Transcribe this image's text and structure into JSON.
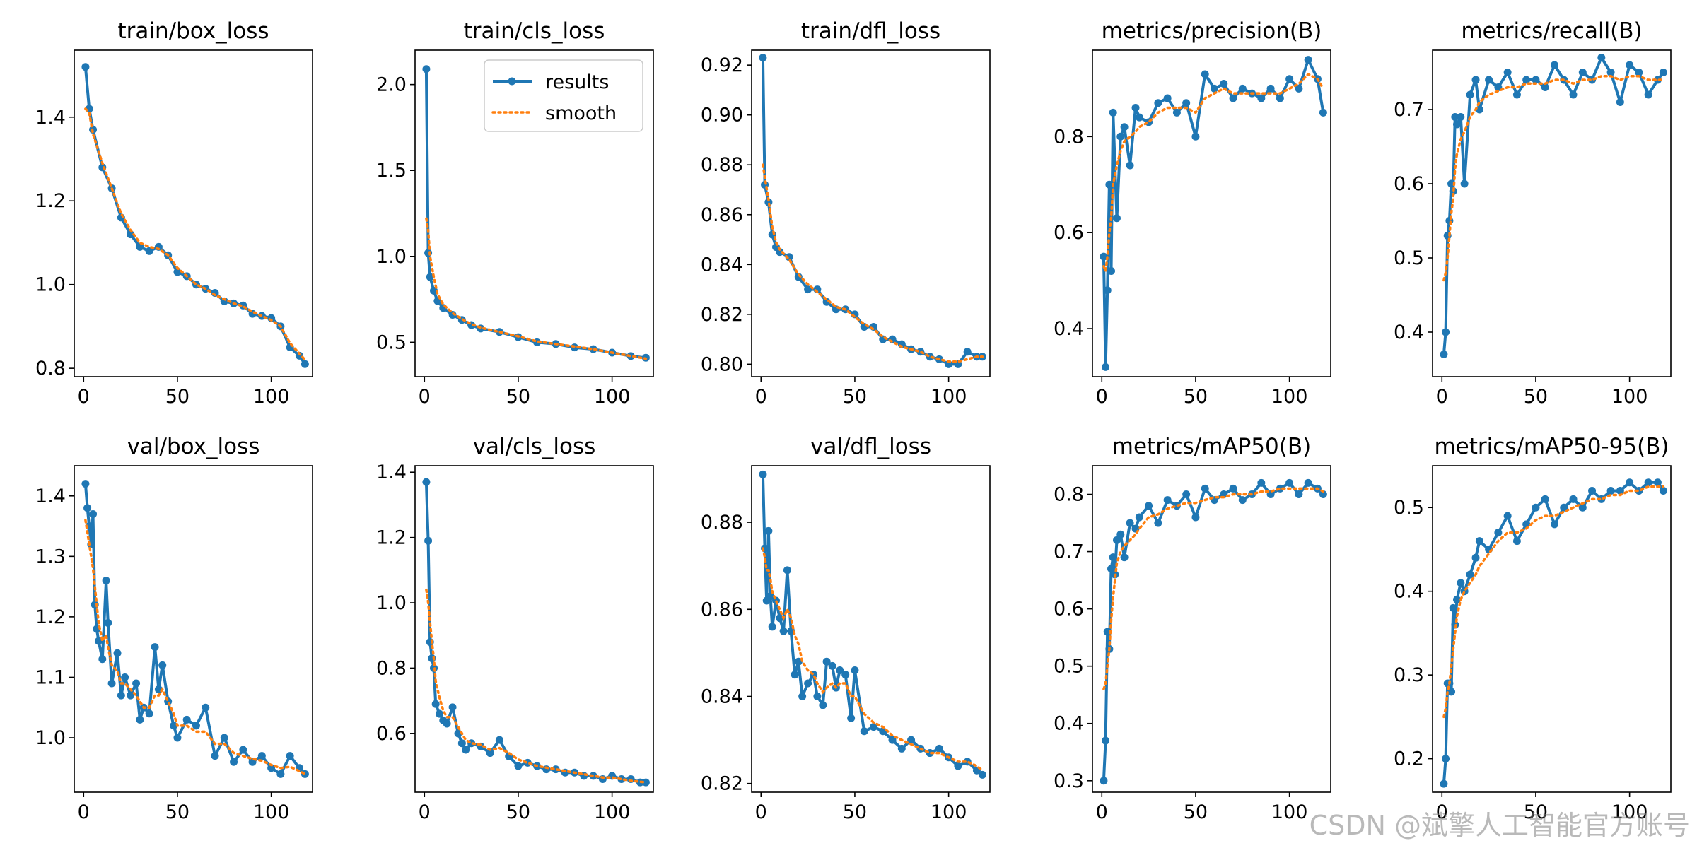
{
  "figure": {
    "rows": 2,
    "cols": 5
  },
  "legend": {
    "results": "results",
    "smooth": "smooth"
  },
  "colors": {
    "results": "#1f77b4",
    "smooth": "#ff7f0e"
  },
  "watermark": "CSDN @斌擎人工智能官方账号",
  "chart_data": [
    {
      "type": "line",
      "title": "train/box_loss",
      "xlim": [
        -5,
        122
      ],
      "ylim": [
        0.78,
        1.56
      ],
      "xticks": [
        0,
        50,
        100
      ],
      "yticks": [
        0.8,
        1.0,
        1.2,
        1.4
      ],
      "legend": false,
      "x": [
        1,
        3,
        5,
        10,
        15,
        20,
        25,
        30,
        35,
        40,
        45,
        50,
        55,
        60,
        65,
        70,
        75,
        80,
        85,
        90,
        95,
        100,
        105,
        110,
        115,
        118
      ],
      "results": [
        1.52,
        1.42,
        1.37,
        1.28,
        1.23,
        1.16,
        1.12,
        1.09,
        1.08,
        1.09,
        1.07,
        1.03,
        1.02,
        1.0,
        0.99,
        0.98,
        0.96,
        0.955,
        0.95,
        0.93,
        0.925,
        0.92,
        0.9,
        0.85,
        0.83,
        0.81
      ],
      "smooth": [
        1.42,
        1.41,
        1.36,
        1.29,
        1.23,
        1.17,
        1.13,
        1.1,
        1.09,
        1.085,
        1.07,
        1.04,
        1.02,
        1.0,
        0.99,
        0.975,
        0.965,
        0.955,
        0.948,
        0.935,
        0.925,
        0.915,
        0.9,
        0.86,
        0.835,
        0.82
      ]
    },
    {
      "type": "line",
      "title": "train/cls_loss",
      "xlim": [
        -5,
        122
      ],
      "ylim": [
        0.3,
        2.2
      ],
      "xticks": [
        0,
        50,
        100
      ],
      "yticks": [
        0.5,
        1.0,
        1.5,
        2.0
      ],
      "legend": true,
      "x": [
        1,
        2,
        3,
        5,
        7,
        10,
        15,
        20,
        25,
        30,
        40,
        50,
        60,
        70,
        80,
        90,
        100,
        110,
        118
      ],
      "results": [
        2.09,
        1.02,
        0.88,
        0.8,
        0.74,
        0.7,
        0.66,
        0.63,
        0.6,
        0.58,
        0.56,
        0.53,
        0.5,
        0.49,
        0.47,
        0.46,
        0.44,
        0.42,
        0.41
      ],
      "smooth": [
        1.22,
        1.15,
        1.0,
        0.88,
        0.78,
        0.72,
        0.67,
        0.635,
        0.605,
        0.585,
        0.56,
        0.535,
        0.505,
        0.49,
        0.475,
        0.46,
        0.44,
        0.42,
        0.405
      ]
    },
    {
      "type": "line",
      "title": "train/dfl_loss",
      "xlim": [
        -5,
        122
      ],
      "ylim": [
        0.795,
        0.926
      ],
      "xticks": [
        0,
        50,
        100
      ],
      "yticks": [
        0.8,
        0.82,
        0.84,
        0.86,
        0.88,
        0.9,
        0.92
      ],
      "legend": false,
      "x": [
        1,
        2,
        4,
        6,
        8,
        10,
        15,
        20,
        25,
        30,
        35,
        40,
        45,
        50,
        55,
        60,
        65,
        70,
        75,
        80,
        85,
        90,
        95,
        100,
        105,
        110,
        115,
        118
      ],
      "results": [
        0.923,
        0.872,
        0.865,
        0.852,
        0.847,
        0.845,
        0.843,
        0.835,
        0.83,
        0.83,
        0.825,
        0.822,
        0.822,
        0.82,
        0.815,
        0.815,
        0.81,
        0.81,
        0.808,
        0.806,
        0.805,
        0.803,
        0.802,
        0.8,
        0.8,
        0.805,
        0.803,
        0.803
      ],
      "smooth": [
        0.88,
        0.875,
        0.866,
        0.855,
        0.849,
        0.846,
        0.842,
        0.836,
        0.832,
        0.829,
        0.826,
        0.823,
        0.822,
        0.819,
        0.816,
        0.814,
        0.811,
        0.809,
        0.807,
        0.806,
        0.805,
        0.803,
        0.802,
        0.801,
        0.801,
        0.802,
        0.803,
        0.803
      ]
    },
    {
      "type": "line",
      "title": "metrics/precision(B)",
      "xlim": [
        -5,
        122
      ],
      "ylim": [
        0.3,
        0.98
      ],
      "xticks": [
        0,
        50,
        100
      ],
      "yticks": [
        0.4,
        0.6,
        0.8
      ],
      "legend": false,
      "x": [
        1,
        2,
        3,
        4,
        5,
        6,
        8,
        10,
        12,
        15,
        18,
        20,
        25,
        30,
        35,
        40,
        45,
        50,
        55,
        60,
        65,
        70,
        75,
        80,
        85,
        90,
        95,
        100,
        105,
        110,
        115,
        118
      ],
      "results": [
        0.55,
        0.32,
        0.48,
        0.7,
        0.52,
        0.85,
        0.63,
        0.8,
        0.82,
        0.74,
        0.86,
        0.84,
        0.83,
        0.87,
        0.88,
        0.85,
        0.87,
        0.8,
        0.93,
        0.9,
        0.91,
        0.88,
        0.9,
        0.89,
        0.88,
        0.9,
        0.88,
        0.92,
        0.9,
        0.96,
        0.92,
        0.85
      ],
      "smooth": [
        0.53,
        0.52,
        0.55,
        0.6,
        0.63,
        0.7,
        0.74,
        0.77,
        0.79,
        0.8,
        0.81,
        0.82,
        0.83,
        0.85,
        0.86,
        0.86,
        0.86,
        0.85,
        0.88,
        0.89,
        0.9,
        0.89,
        0.89,
        0.89,
        0.89,
        0.89,
        0.89,
        0.9,
        0.91,
        0.93,
        0.92,
        0.9
      ]
    },
    {
      "type": "line",
      "title": "metrics/recall(B)",
      "xlim": [
        -5,
        122
      ],
      "ylim": [
        0.34,
        0.78
      ],
      "xticks": [
        0,
        50,
        100
      ],
      "yticks": [
        0.4,
        0.5,
        0.6,
        0.7
      ],
      "legend": false,
      "x": [
        1,
        2,
        3,
        4,
        5,
        6,
        7,
        8,
        10,
        12,
        15,
        18,
        20,
        25,
        30,
        35,
        40,
        45,
        50,
        55,
        60,
        65,
        70,
        75,
        80,
        85,
        90,
        95,
        100,
        105,
        110,
        115,
        118
      ],
      "results": [
        0.37,
        0.4,
        0.53,
        0.55,
        0.6,
        0.59,
        0.69,
        0.68,
        0.69,
        0.6,
        0.72,
        0.74,
        0.7,
        0.74,
        0.73,
        0.75,
        0.72,
        0.74,
        0.74,
        0.73,
        0.76,
        0.74,
        0.72,
        0.75,
        0.74,
        0.77,
        0.75,
        0.71,
        0.76,
        0.75,
        0.72,
        0.74,
        0.75
      ],
      "smooth": [
        0.47,
        0.48,
        0.5,
        0.53,
        0.56,
        0.58,
        0.62,
        0.64,
        0.66,
        0.67,
        0.69,
        0.7,
        0.71,
        0.72,
        0.725,
        0.73,
        0.73,
        0.735,
        0.735,
        0.735,
        0.74,
        0.74,
        0.735,
        0.74,
        0.74,
        0.745,
        0.745,
        0.74,
        0.745,
        0.745,
        0.74,
        0.74,
        0.74
      ]
    },
    {
      "type": "line",
      "title": "val/box_loss",
      "xlim": [
        -5,
        122
      ],
      "ylim": [
        0.91,
        1.45
      ],
      "xticks": [
        0,
        50,
        100
      ],
      "yticks": [
        1.0,
        1.1,
        1.2,
        1.3,
        1.4
      ],
      "legend": false,
      "x": [
        1,
        2,
        3,
        4,
        5,
        6,
        7,
        8,
        10,
        12,
        13,
        15,
        18,
        20,
        22,
        25,
        28,
        30,
        32,
        35,
        38,
        40,
        42,
        45,
        48,
        50,
        55,
        60,
        65,
        70,
        75,
        80,
        85,
        90,
        95,
        100,
        105,
        110,
        115,
        118
      ],
      "results": [
        1.42,
        1.38,
        1.35,
        1.32,
        1.37,
        1.22,
        1.18,
        1.16,
        1.13,
        1.26,
        1.19,
        1.09,
        1.14,
        1.07,
        1.1,
        1.07,
        1.09,
        1.03,
        1.05,
        1.04,
        1.15,
        1.08,
        1.12,
        1.06,
        1.02,
        1.0,
        1.03,
        1.02,
        1.05,
        0.97,
        1.0,
        0.96,
        0.98,
        0.96,
        0.97,
        0.95,
        0.94,
        0.97,
        0.95,
        0.94
      ],
      "smooth": [
        1.36,
        1.34,
        1.32,
        1.3,
        1.28,
        1.25,
        1.22,
        1.19,
        1.16,
        1.17,
        1.15,
        1.12,
        1.11,
        1.09,
        1.09,
        1.08,
        1.07,
        1.06,
        1.05,
        1.05,
        1.07,
        1.07,
        1.08,
        1.06,
        1.04,
        1.02,
        1.02,
        1.01,
        1.01,
        0.99,
        0.99,
        0.975,
        0.97,
        0.965,
        0.962,
        0.955,
        0.95,
        0.952,
        0.945,
        0.94
      ]
    },
    {
      "type": "line",
      "title": "val/cls_loss",
      "xlim": [
        -5,
        122
      ],
      "ylim": [
        0.42,
        1.42
      ],
      "xticks": [
        0,
        50,
        100
      ],
      "yticks": [
        0.6,
        0.8,
        1.0,
        1.2,
        1.4
      ],
      "legend": false,
      "x": [
        1,
        2,
        3,
        4,
        5,
        6,
        8,
        10,
        12,
        15,
        18,
        20,
        22,
        25,
        30,
        35,
        40,
        45,
        50,
        55,
        60,
        65,
        70,
        75,
        80,
        85,
        90,
        95,
        100,
        105,
        110,
        115,
        118
      ],
      "results": [
        1.37,
        1.19,
        0.88,
        0.83,
        0.8,
        0.69,
        0.66,
        0.64,
        0.63,
        0.68,
        0.6,
        0.57,
        0.55,
        0.57,
        0.56,
        0.54,
        0.58,
        0.53,
        0.5,
        0.51,
        0.5,
        0.49,
        0.49,
        0.48,
        0.48,
        0.47,
        0.47,
        0.46,
        0.47,
        0.46,
        0.46,
        0.45,
        0.45
      ],
      "smooth": [
        1.04,
        1.0,
        0.94,
        0.88,
        0.83,
        0.76,
        0.71,
        0.67,
        0.65,
        0.65,
        0.62,
        0.6,
        0.58,
        0.57,
        0.565,
        0.55,
        0.555,
        0.54,
        0.52,
        0.51,
        0.5,
        0.495,
        0.49,
        0.485,
        0.48,
        0.475,
        0.47,
        0.465,
        0.465,
        0.46,
        0.455,
        0.452,
        0.45
      ]
    },
    {
      "type": "line",
      "title": "val/dfl_loss",
      "xlim": [
        -5,
        122
      ],
      "ylim": [
        0.818,
        0.893
      ],
      "xticks": [
        0,
        50,
        100
      ],
      "yticks": [
        0.82,
        0.84,
        0.86,
        0.88
      ],
      "legend": false,
      "x": [
        1,
        2,
        3,
        4,
        5,
        6,
        8,
        10,
        12,
        14,
        16,
        18,
        20,
        22,
        25,
        28,
        30,
        33,
        35,
        38,
        40,
        42,
        45,
        48,
        50,
        55,
        60,
        65,
        70,
        75,
        80,
        85,
        90,
        95,
        100,
        105,
        110,
        115,
        118
      ],
      "results": [
        0.891,
        0.874,
        0.862,
        0.878,
        0.863,
        0.856,
        0.862,
        0.858,
        0.855,
        0.869,
        0.855,
        0.845,
        0.848,
        0.84,
        0.843,
        0.845,
        0.84,
        0.838,
        0.848,
        0.847,
        0.842,
        0.846,
        0.845,
        0.835,
        0.846,
        0.832,
        0.833,
        0.832,
        0.83,
        0.828,
        0.83,
        0.828,
        0.827,
        0.828,
        0.826,
        0.824,
        0.825,
        0.823,
        0.822
      ],
      "smooth": [
        0.874,
        0.872,
        0.869,
        0.869,
        0.867,
        0.864,
        0.862,
        0.86,
        0.858,
        0.86,
        0.858,
        0.854,
        0.852,
        0.848,
        0.846,
        0.845,
        0.843,
        0.841,
        0.842,
        0.843,
        0.842,
        0.843,
        0.843,
        0.84,
        0.84,
        0.836,
        0.834,
        0.833,
        0.831,
        0.83,
        0.829,
        0.828,
        0.827,
        0.827,
        0.826,
        0.825,
        0.825,
        0.824,
        0.823
      ]
    },
    {
      "type": "line",
      "title": "metrics/mAP50(B)",
      "xlim": [
        -5,
        122
      ],
      "ylim": [
        0.28,
        0.85
      ],
      "xticks": [
        0,
        50,
        100
      ],
      "yticks": [
        0.3,
        0.4,
        0.5,
        0.6,
        0.7,
        0.8
      ],
      "legend": false,
      "x": [
        1,
        2,
        3,
        4,
        5,
        6,
        7,
        8,
        10,
        12,
        15,
        18,
        20,
        25,
        30,
        35,
        40,
        45,
        50,
        55,
        60,
        65,
        70,
        75,
        80,
        85,
        90,
        95,
        100,
        105,
        110,
        115,
        118
      ],
      "results": [
        0.3,
        0.37,
        0.56,
        0.53,
        0.67,
        0.69,
        0.66,
        0.72,
        0.73,
        0.69,
        0.75,
        0.74,
        0.76,
        0.78,
        0.75,
        0.79,
        0.78,
        0.8,
        0.76,
        0.81,
        0.79,
        0.8,
        0.81,
        0.79,
        0.8,
        0.82,
        0.8,
        0.81,
        0.82,
        0.8,
        0.82,
        0.81,
        0.8
      ],
      "smooth": [
        0.46,
        0.47,
        0.5,
        0.53,
        0.58,
        0.62,
        0.65,
        0.68,
        0.7,
        0.71,
        0.72,
        0.73,
        0.74,
        0.76,
        0.765,
        0.775,
        0.78,
        0.785,
        0.785,
        0.79,
        0.795,
        0.795,
        0.8,
        0.8,
        0.8,
        0.805,
        0.805,
        0.81,
        0.81,
        0.81,
        0.81,
        0.81,
        0.805
      ]
    },
    {
      "type": "line",
      "title": "metrics/mAP50-95(B)",
      "xlim": [
        -5,
        122
      ],
      "ylim": [
        0.16,
        0.55
      ],
      "xticks": [
        0,
        50,
        100
      ],
      "yticks": [
        0.2,
        0.3,
        0.4,
        0.5
      ],
      "legend": false,
      "x": [
        1,
        2,
        3,
        4,
        5,
        6,
        7,
        8,
        10,
        12,
        15,
        18,
        20,
        25,
        30,
        35,
        40,
        45,
        50,
        55,
        60,
        65,
        70,
        75,
        80,
        85,
        90,
        95,
        100,
        105,
        110,
        115,
        118
      ],
      "results": [
        0.17,
        0.2,
        0.29,
        0.29,
        0.28,
        0.38,
        0.36,
        0.39,
        0.41,
        0.4,
        0.42,
        0.44,
        0.46,
        0.45,
        0.47,
        0.49,
        0.46,
        0.48,
        0.5,
        0.51,
        0.48,
        0.5,
        0.51,
        0.5,
        0.52,
        0.51,
        0.52,
        0.52,
        0.53,
        0.52,
        0.53,
        0.53,
        0.52
      ],
      "smooth": [
        0.25,
        0.26,
        0.28,
        0.29,
        0.31,
        0.33,
        0.35,
        0.37,
        0.39,
        0.4,
        0.41,
        0.42,
        0.43,
        0.445,
        0.46,
        0.47,
        0.47,
        0.475,
        0.485,
        0.49,
        0.49,
        0.495,
        0.5,
        0.505,
        0.51,
        0.51,
        0.515,
        0.515,
        0.52,
        0.52,
        0.525,
        0.525,
        0.525
      ]
    }
  ]
}
